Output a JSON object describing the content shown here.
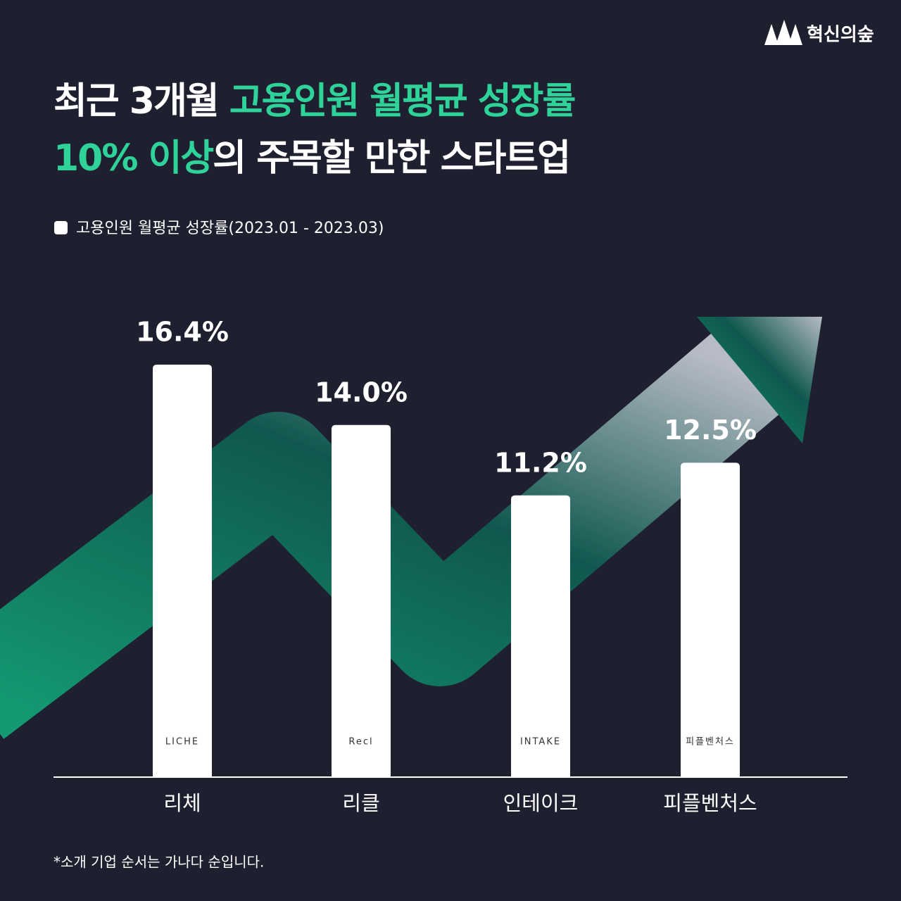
{
  "chart_data": {
    "type": "bar",
    "brand": "혁신의숲",
    "title_lines": [
      [
        "최근 3개월 ",
        "고용인원 월평균 성장률"
      ],
      [
        "10% 이상",
        "의 주목할 만한 스타트업"
      ]
    ],
    "categories": [
      "리체",
      "리클",
      "인테이크",
      "피플벤처스"
    ],
    "logos": [
      "LICHE",
      "Recl",
      "INTAKE",
      "피플벤처스"
    ],
    "series": [
      {
        "name": "고용인원 월평균 성장률(2023.01 - 2023.03)",
        "color": "#ffffff",
        "values": [
          16.4,
          14.0,
          11.2,
          12.5
        ],
        "value_labels": [
          "16.4%",
          "14.0%",
          "11.2%",
          "12.5%"
        ]
      }
    ],
    "footnote": "*소개 기업 순서는 가나다 순입니다."
  }
}
